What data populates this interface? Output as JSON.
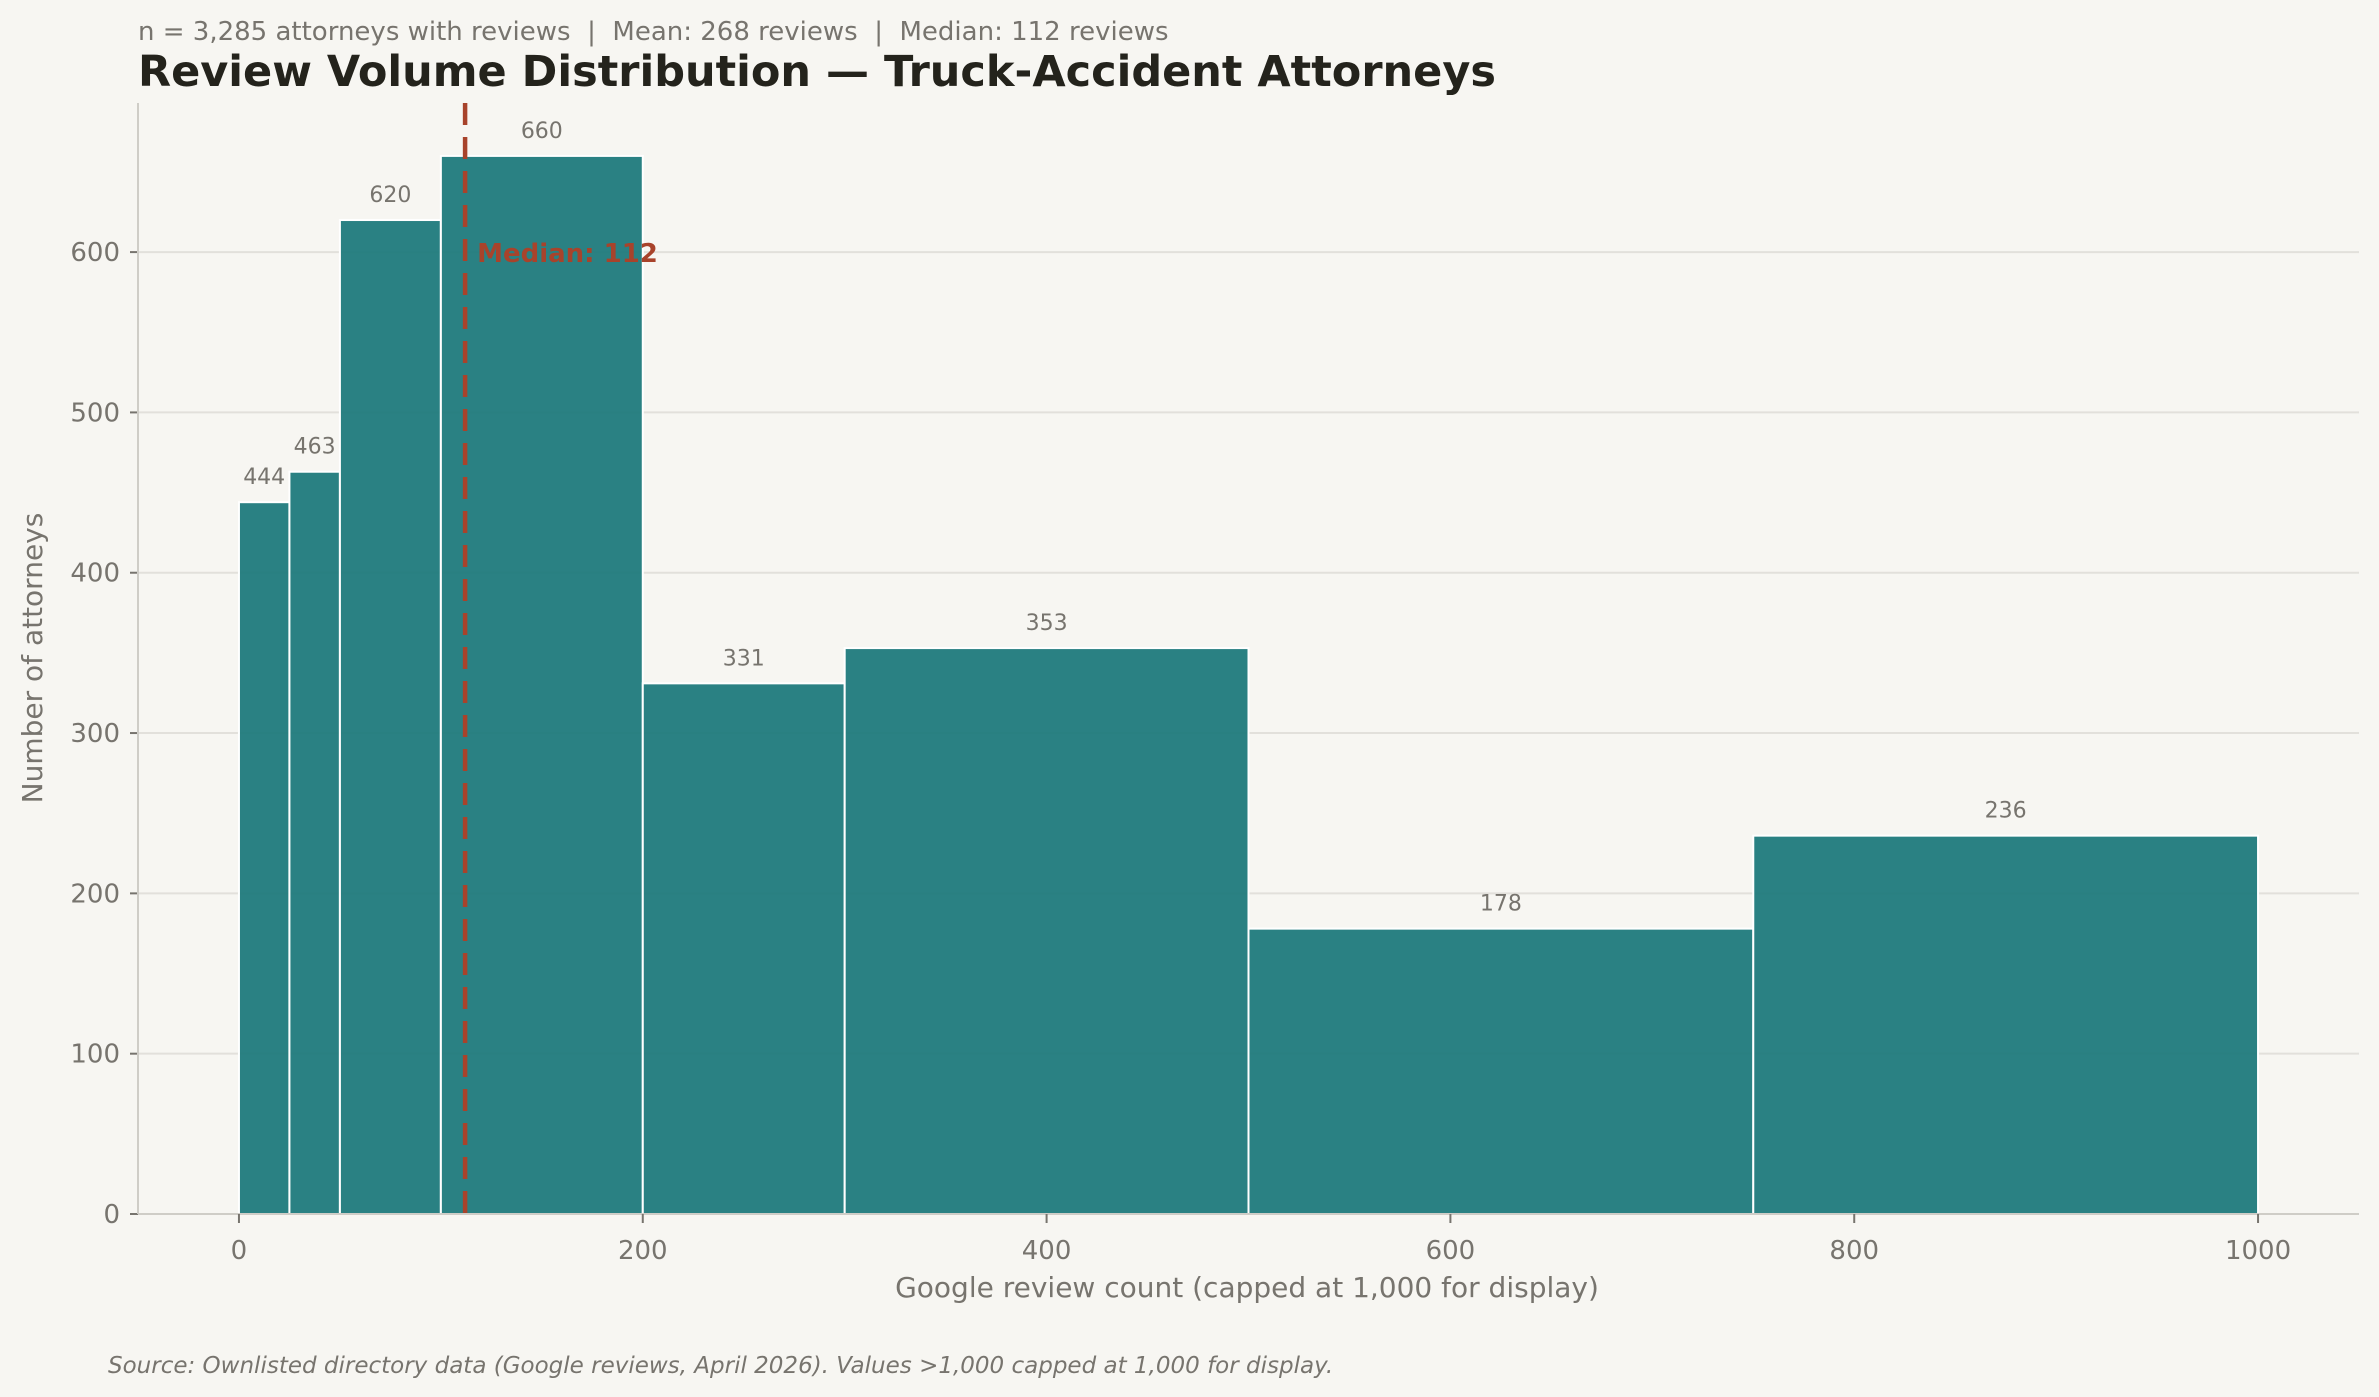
{
  "chart_data": {
    "type": "bar",
    "subtitle": "n = 3,285 attorneys with reviews  |  Mean: 268 reviews  |  Median: 112 reviews",
    "title": "Review Volume Distribution — Truck-Accident Attorneys",
    "xlabel": "Google review count (capped at 1,000 for display)",
    "ylabel": "Number of attorneys",
    "source": "Source: Ownlisted directory data (Google reviews, April 2026). Values >1,000 capped at 1,000 for display.",
    "xlim": [
      -50,
      1050
    ],
    "ylim": [
      0,
      693
    ],
    "xticks": [
      0,
      200,
      400,
      600,
      800,
      1000
    ],
    "yticks": [
      0,
      100,
      200,
      300,
      400,
      500,
      600
    ],
    "grid": "horizontal",
    "bins": [
      {
        "start": 0,
        "end": 25,
        "count": 444
      },
      {
        "start": 25,
        "end": 50,
        "count": 463
      },
      {
        "start": 50,
        "end": 100,
        "count": 620
      },
      {
        "start": 100,
        "end": 200,
        "count": 660
      },
      {
        "start": 200,
        "end": 300,
        "count": 331
      },
      {
        "start": 300,
        "end": 500,
        "count": 353
      },
      {
        "start": 500,
        "end": 750,
        "count": 178
      },
      {
        "start": 750,
        "end": 1000,
        "count": 236
      }
    ],
    "median": {
      "value": 112,
      "label": "Median: 112"
    },
    "colors": {
      "bar": "#1f7a7c",
      "median": "#a8432b",
      "background": "#f7f6f2",
      "title": "#24231c",
      "text": "#77746e"
    }
  }
}
